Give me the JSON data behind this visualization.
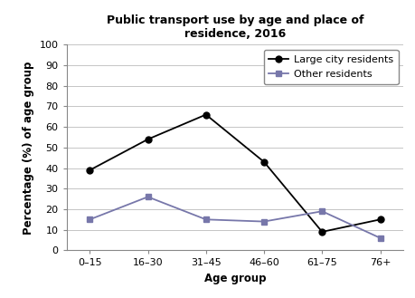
{
  "title": "Public transport use by age and place of\nresidence, 2016",
  "xlabel": "Age group",
  "ylabel": "Percentage (%) of age group",
  "categories": [
    "0–15",
    "16–30",
    "31–45",
    "46–60",
    "61–75",
    "76+"
  ],
  "large_city": [
    39,
    54,
    66,
    43,
    9,
    15
  ],
  "other": [
    15,
    26,
    15,
    14,
    19,
    6
  ],
  "large_city_label": "Large city residents",
  "other_label": "Other residents",
  "large_city_color": "#000000",
  "other_color": "#7777aa",
  "large_city_marker": "o",
  "other_marker": "s",
  "ylim": [
    0,
    100
  ],
  "yticks": [
    0,
    10,
    20,
    30,
    40,
    50,
    60,
    70,
    80,
    90,
    100
  ],
  "background_color": "#ffffff",
  "grid_color": "#bbbbbb",
  "title_fontsize": 9,
  "axis_label_fontsize": 8.5,
  "tick_fontsize": 8,
  "legend_fontsize": 8
}
